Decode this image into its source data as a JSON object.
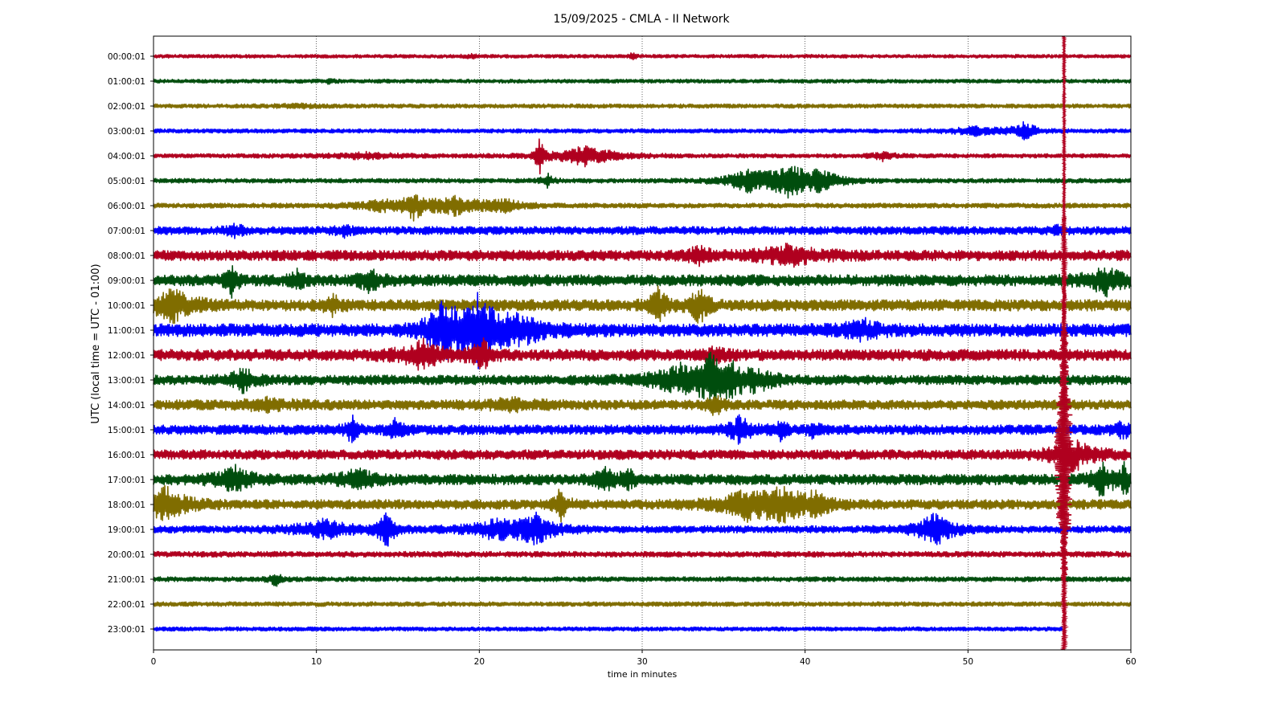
{
  "chart_data": {
    "type": "line",
    "title": "15/09/2025 - CMLA - II Network",
    "xlabel": "time in minutes",
    "ylabel": "UTC (local time = UTC - 01:00)",
    "xlim": [
      0,
      60
    ],
    "xticks": [
      "0",
      "10",
      "20",
      "30",
      "40",
      "50",
      "60"
    ],
    "grid": "vertical dotted",
    "series_colors": [
      "#b0001f",
      "#004d0d",
      "#806d00",
      "#0000ff"
    ],
    "rows": [
      {
        "label": "00:00:01",
        "color": "#b0001f",
        "noise": 2.2,
        "events": [
          [
            19.5,
            2,
            0.3
          ],
          [
            29.4,
            5,
            0.15
          ]
        ]
      },
      {
        "label": "01:00:01",
        "color": "#004d0d",
        "noise": 2.4,
        "events": [
          [
            10.8,
            2,
            0.3
          ]
        ]
      },
      {
        "label": "02:00:01",
        "color": "#806d00",
        "noise": 2.6,
        "events": [
          [
            9,
            2,
            1.0
          ]
        ]
      },
      {
        "label": "03:00:01",
        "color": "#0000ff",
        "noise": 2.6,
        "events": [
          [
            50.5,
            5,
            1.2
          ],
          [
            53.5,
            10,
            0.6
          ]
        ]
      },
      {
        "label": "04:00:01",
        "color": "#b0001f",
        "noise": 2.6,
        "events": [
          [
            13,
            3,
            2.0
          ],
          [
            23.7,
            22,
            0.2
          ],
          [
            26.5,
            12,
            1.5
          ],
          [
            44.8,
            5,
            0.5
          ]
        ]
      },
      {
        "label": "05:00:01",
        "color": "#004d0d",
        "noise": 2.8,
        "events": [
          [
            24.2,
            8,
            0.3
          ],
          [
            36.5,
            12,
            1.2
          ],
          [
            39,
            18,
            1.0
          ],
          [
            41,
            12,
            1.0
          ]
        ]
      },
      {
        "label": "06:00:01",
        "color": "#806d00",
        "noise": 3.0,
        "events": [
          [
            14,
            6,
            1.5
          ],
          [
            16,
            15,
            0.5
          ],
          [
            18.5,
            10,
            1.5
          ],
          [
            21.5,
            7,
            0.8
          ]
        ]
      },
      {
        "label": "07:00:01",
        "color": "#0000ff",
        "noise": 5.0,
        "events": [
          [
            5,
            8,
            0.4
          ],
          [
            11.7,
            6,
            0.4
          ],
          [
            55.5,
            4,
            0.3
          ]
        ]
      },
      {
        "label": "08:00:01",
        "color": "#b0001f",
        "noise": 6.5,
        "events": [
          [
            33.5,
            10,
            0.5
          ],
          [
            39,
            10,
            1.5
          ]
        ]
      },
      {
        "label": "09:00:01",
        "color": "#004d0d",
        "noise": 7.0,
        "events": [
          [
            4.8,
            20,
            0.3
          ],
          [
            8.9,
            12,
            0.3
          ],
          [
            13.3,
            18,
            0.4
          ],
          [
            58.5,
            14,
            1.0
          ]
        ]
      },
      {
        "label": "10:00:01",
        "color": "#806d00",
        "noise": 7.0,
        "events": [
          [
            1.2,
            18,
            1.0
          ],
          [
            11,
            10,
            0.4
          ],
          [
            31,
            20,
            0.4
          ],
          [
            33.5,
            22,
            0.4
          ]
        ]
      },
      {
        "label": "11:00:01",
        "color": "#0000ff",
        "noise": 8.0,
        "events": [
          [
            17.8,
            30,
            0.8
          ],
          [
            20,
            40,
            1.0
          ],
          [
            22.5,
            12,
            1.5
          ],
          [
            43.5,
            10,
            0.8
          ]
        ]
      },
      {
        "label": "12:00:01",
        "color": "#b0001f",
        "noise": 7.0,
        "events": [
          [
            16.5,
            16,
            1.0
          ],
          [
            20.2,
            16,
            0.5
          ],
          [
            34.5,
            10,
            0.4
          ]
        ]
      },
      {
        "label": "13:00:01",
        "color": "#004d0d",
        "noise": 6.0,
        "events": [
          [
            5.5,
            14,
            0.6
          ],
          [
            32.5,
            18,
            1.5
          ],
          [
            34.3,
            30,
            0.5
          ],
          [
            35.5,
            22,
            0.4
          ],
          [
            37,
            12,
            1.0
          ]
        ]
      },
      {
        "label": "14:00:01",
        "color": "#806d00",
        "noise": 6.0,
        "events": [
          [
            7,
            5,
            1.5
          ],
          [
            22,
            5,
            1.5
          ],
          [
            34.5,
            14,
            0.3
          ]
        ]
      },
      {
        "label": "15:00:01",
        "color": "#0000ff",
        "noise": 6.0,
        "events": [
          [
            12.2,
            16,
            0.3
          ],
          [
            14.8,
            10,
            0.4
          ],
          [
            36,
            14,
            0.6
          ],
          [
            38.5,
            10,
            0.3
          ],
          [
            40.5,
            10,
            0.3
          ],
          [
            59.5,
            8,
            0.5
          ]
        ]
      },
      {
        "label": "16:00:01",
        "color": "#b0001f",
        "noise": 6.0,
        "events": [
          [
            56.5,
            18,
            1.0
          ]
        ]
      },
      {
        "label": "17:00:01",
        "color": "#004d0d",
        "noise": 6.5,
        "events": [
          [
            5,
            14,
            0.8
          ],
          [
            12.5,
            12,
            0.8
          ],
          [
            27.7,
            16,
            0.4
          ],
          [
            29.2,
            10,
            0.4
          ],
          [
            58.2,
            18,
            0.5
          ],
          [
            59.6,
            16,
            0.4
          ]
        ]
      },
      {
        "label": "18:00:01",
        "color": "#806d00",
        "noise": 6.0,
        "events": [
          [
            0.8,
            20,
            1.0
          ],
          [
            25,
            22,
            0.3
          ],
          [
            36.5,
            16,
            1.5
          ],
          [
            38.5,
            16,
            0.8
          ],
          [
            40.5,
            12,
            1.0
          ]
        ]
      },
      {
        "label": "19:00:01",
        "color": "#0000ff",
        "noise": 4.5,
        "events": [
          [
            10.5,
            10,
            1.5
          ],
          [
            14.3,
            22,
            0.4
          ],
          [
            21,
            10,
            1.5
          ],
          [
            23.5,
            16,
            1.0
          ],
          [
            48,
            18,
            1.0
          ]
        ]
      },
      {
        "label": "20:00:01",
        "color": "#b0001f",
        "noise": 3.5,
        "events": []
      },
      {
        "label": "21:00:01",
        "color": "#004d0d",
        "noise": 3.0,
        "events": [
          [
            7.5,
            8,
            0.3
          ]
        ]
      },
      {
        "label": "22:00:01",
        "color": "#806d00",
        "noise": 2.8,
        "events": []
      },
      {
        "label": "23:00:01",
        "color": "#0000ff",
        "noise": 2.5,
        "events": []
      }
    ],
    "big_event": {
      "minute": 55.9,
      "row": 0,
      "color": "#b0001f"
    }
  }
}
